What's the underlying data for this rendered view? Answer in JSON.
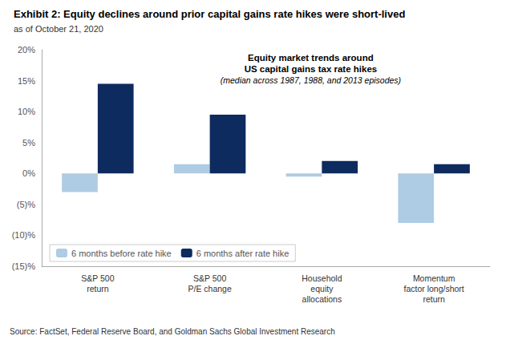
{
  "chart_data": {
    "type": "bar",
    "title": "Exhibit 2: Equity declines around prior capital gains rate hikes were short-lived",
    "subtitle": "as of October 21, 2020",
    "annotations": [
      "Equity market trends around",
      "US capital gains tax rate hikes",
      "(median across 1987, 1988, and 2013 episodes)"
    ],
    "source": "Source: FactSet, Federal Reserve Board, and Goldman Sachs Global Investment Research",
    "categories": [
      "S&P 500\nreturn",
      "S&P 500\nP/E change",
      "Household\nequity\nallocations",
      "Momentum\nfactor long/short\nreturn"
    ],
    "series": [
      {
        "name": "6 months before rate hike",
        "color": "#aecce3",
        "values": [
          -3.0,
          1.5,
          -0.5,
          -8.0
        ]
      },
      {
        "name": "6 months after rate hike",
        "color": "#0d2b5e",
        "values": [
          14.5,
          9.5,
          2.0,
          1.5
        ]
      }
    ],
    "ylim": [
      -15,
      20
    ],
    "yticks": [
      {
        "value": -15,
        "label": "(15)%"
      },
      {
        "value": -10,
        "label": "(10)%"
      },
      {
        "value": -5,
        "label": "(5)%"
      },
      {
        "value": 0,
        "label": "0%"
      },
      {
        "value": 5,
        "label": "5%"
      },
      {
        "value": 10,
        "label": "10%"
      },
      {
        "value": 15,
        "label": "15%"
      },
      {
        "value": 20,
        "label": "20%"
      }
    ],
    "grid": false,
    "legend": "lower left"
  }
}
